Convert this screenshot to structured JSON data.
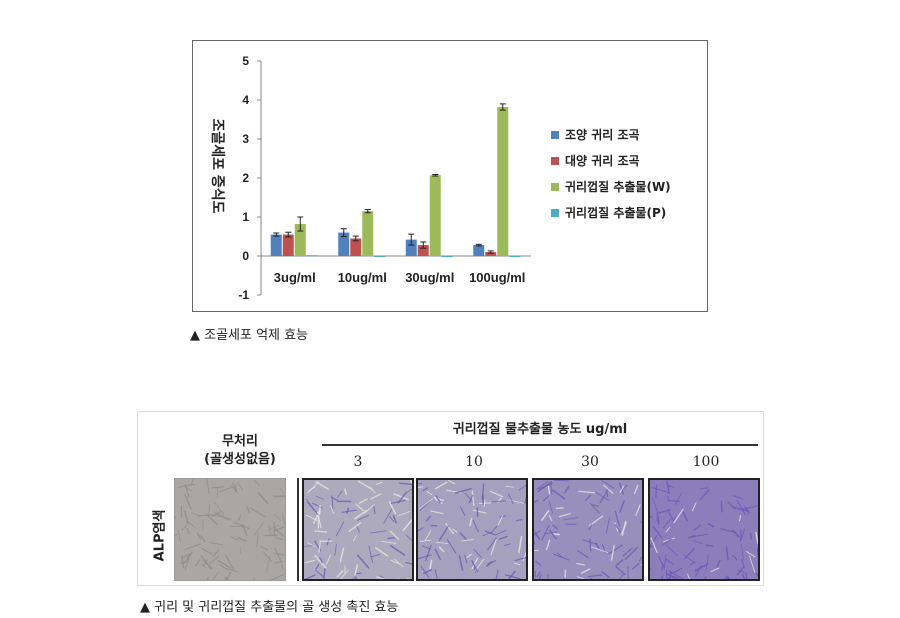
{
  "chart_data": {
    "type": "bar",
    "ylabel": "조골세포 증식도",
    "ylim": [
      -1,
      5
    ],
    "yticks": [
      -1,
      0,
      1,
      2,
      3,
      4,
      5
    ],
    "categories": [
      "3ug/ml",
      "10ug/ml",
      "30ug/ml",
      "100ug/ml"
    ],
    "series": [
      {
        "name": "조양 귀리 조곡",
        "color": "#4f81bd",
        "values": [
          0.55,
          0.6,
          0.42,
          0.28
        ],
        "errors": [
          0.04,
          0.1,
          0.14,
          0.02
        ]
      },
      {
        "name": "대양 귀리 조곡",
        "color": "#c0504d",
        "values": [
          0.55,
          0.45,
          0.28,
          0.1
        ],
        "errors": [
          0.06,
          0.06,
          0.08,
          0.03
        ]
      },
      {
        "name": "귀리껍질 추출물(W)",
        "color": "#9bbb59",
        "values": [
          0.82,
          1.15,
          2.07,
          3.82
        ],
        "errors": [
          0.18,
          0.04,
          0.02,
          0.08
        ]
      },
      {
        "name": "귀리껍질 추출물(P)",
        "color": "#4bacc6",
        "values": [
          0.02,
          0.0,
          0.0,
          0.0
        ],
        "errors": [
          0,
          0,
          0,
          0
        ]
      }
    ],
    "legend_position": "right"
  },
  "captions": {
    "chart": "▲ 조골세포 억제 효능",
    "figure": "▲ 귀리 및 귀리껍질 추출물의 골 생성 촉진 효능"
  },
  "figure": {
    "control_label_line1": "무처리",
    "control_label_line2": "(골생성없음)",
    "header_label": "귀리껍질 물추출물 농도 ug/ml",
    "row_label": "ALP염색",
    "concentrations": [
      "3",
      "10",
      "30",
      "100"
    ],
    "stain_intensity": [
      0.0,
      0.25,
      0.4,
      0.65,
      0.9
    ],
    "colors": {
      "stain": "#6a55b8",
      "background": "#c8ccc0",
      "control": "#a9a6a3"
    }
  }
}
